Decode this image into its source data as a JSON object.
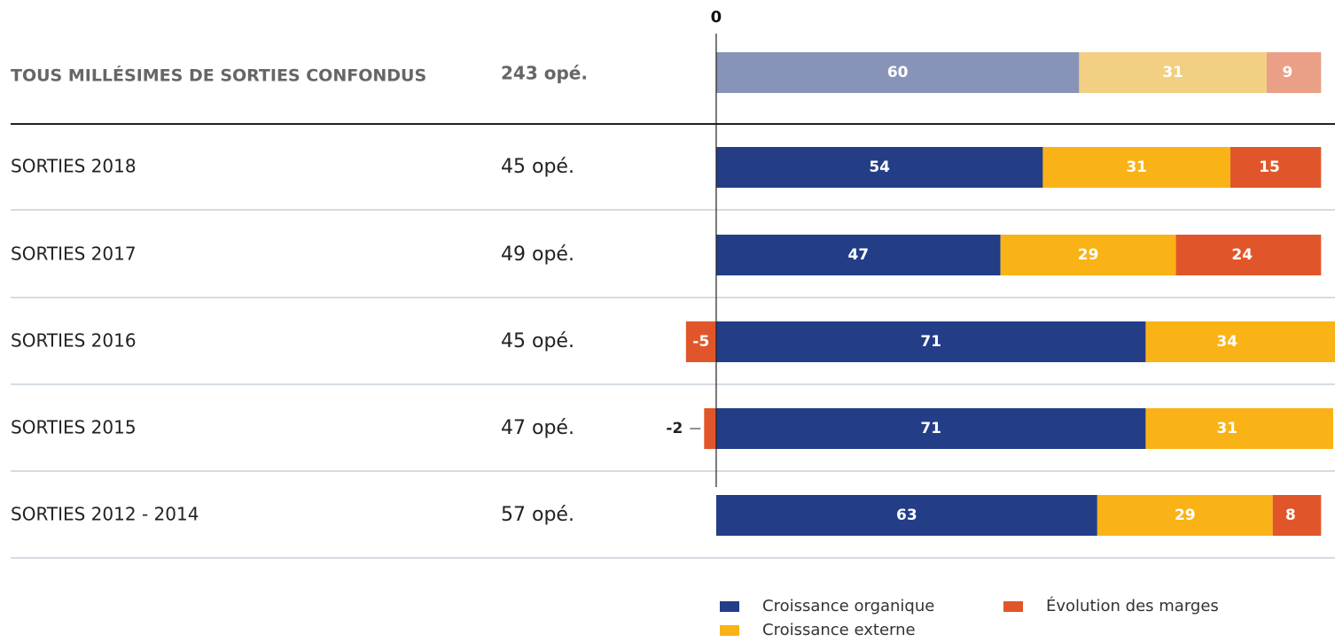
{
  "chart_data": {
    "type": "stacked-bar-horizontal",
    "categories": [
      "TOUS MILLÉSIMES DE SORTIES CONFONDUS",
      "SORTIES 2018",
      "SORTIES 2017",
      "SORTIES 2016",
      "SORTIES 2015",
      "SORTIES 2012 - 2014"
    ],
    "counts": [
      "243 opé.",
      "45 opé.",
      "49 opé.",
      "45 opé.",
      "47 opé.",
      "57 opé."
    ],
    "series": [
      {
        "name": "Croissance organique",
        "color": "#233d87",
        "faded_color": "#8893b8",
        "values": [
          60,
          54,
          47,
          71,
          71,
          63
        ]
      },
      {
        "name": "Croissance externe",
        "color": "#f9b316",
        "faded_color": "#f2cf82",
        "values": [
          31,
          31,
          29,
          34,
          31,
          29
        ]
      },
      {
        "name": "Évolution des marges",
        "color": "#e0562a",
        "faded_color": "#e9a087",
        "values": [
          9,
          15,
          24,
          -5,
          -2,
          8
        ]
      }
    ],
    "xlim": [
      -6,
      102.3
    ],
    "xticks": [
      0
    ]
  }
}
